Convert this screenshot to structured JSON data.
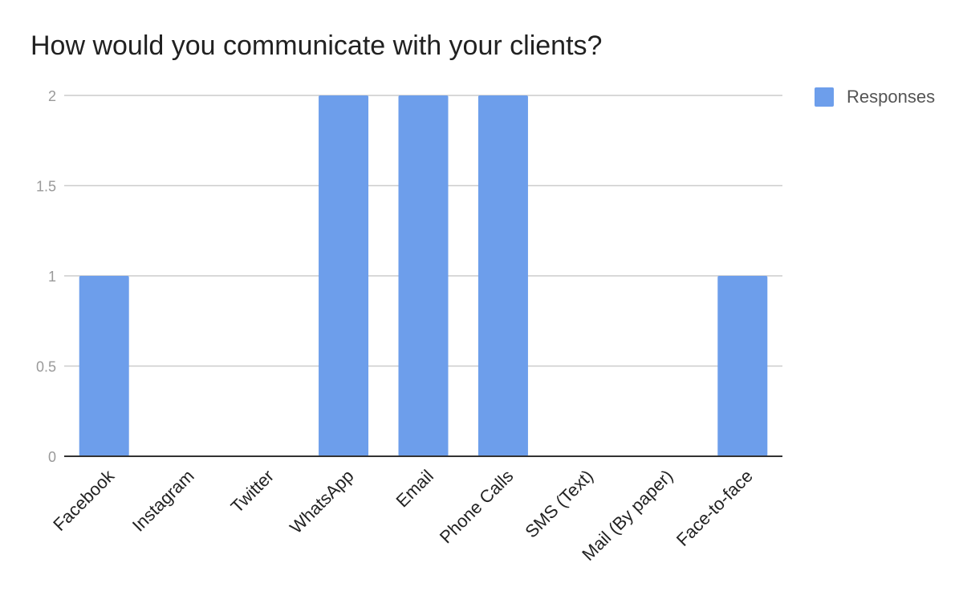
{
  "chart_data": {
    "type": "bar",
    "title": "How would you communicate with your clients?",
    "categories": [
      "Facebook",
      "Instagram",
      "Twitter",
      "WhatsApp",
      "Email",
      "Phone Calls",
      "SMS (Text)",
      "Mail (By paper)",
      "Face-to-face"
    ],
    "series": [
      {
        "name": "Responses",
        "values": [
          1,
          0,
          0,
          2,
          2,
          2,
          0,
          0,
          1
        ]
      }
    ],
    "ylim": [
      0,
      2
    ],
    "yticks": [
      "0",
      "0.5",
      "1",
      "1.5",
      "2"
    ],
    "grid": true,
    "legend_position": "top-right",
    "colors": {
      "bar": "#6d9eeb",
      "grid": "#cccccc",
      "axis": "#333333",
      "tick": "#999999",
      "category": "#222222"
    }
  }
}
